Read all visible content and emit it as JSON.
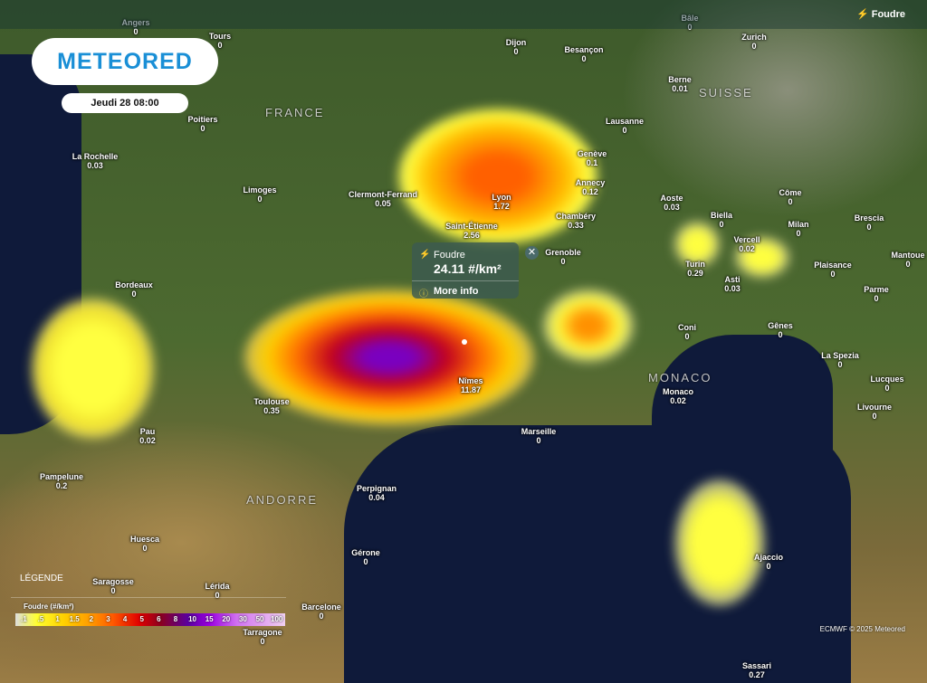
{
  "header": {
    "layer": "Foudre",
    "logo": "METEORED",
    "date": "Jeudi 28 08:00"
  },
  "regions": [
    "FRANCE",
    "SUISSE",
    "ANDORRE",
    "MONACO"
  ],
  "cities": [
    {
      "name": "Angers",
      "value": "0"
    },
    {
      "name": "Tours",
      "value": "0"
    },
    {
      "name": "Dijon",
      "value": "0"
    },
    {
      "name": "Besançon",
      "value": "0"
    },
    {
      "name": "Bâle",
      "value": "0"
    },
    {
      "name": "Zurich",
      "value": "0"
    },
    {
      "name": "Poitiers",
      "value": "0"
    },
    {
      "name": "Berne",
      "value": "0.01"
    },
    {
      "name": "Lausanne",
      "value": "0"
    },
    {
      "name": "La Rochelle",
      "value": "0.03"
    },
    {
      "name": "Genève",
      "value": "0.1"
    },
    {
      "name": "Limoges",
      "value": "0"
    },
    {
      "name": "Clermont-Ferrand",
      "value": "0.05"
    },
    {
      "name": "Lyon",
      "value": "1.72"
    },
    {
      "name": "Annecy",
      "value": "0.12"
    },
    {
      "name": "Côme",
      "value": "0"
    },
    {
      "name": "Aoste",
      "value": "0.03"
    },
    {
      "name": "Chambéry",
      "value": "0.33"
    },
    {
      "name": "Biella",
      "value": "0"
    },
    {
      "name": "Milan",
      "value": "0"
    },
    {
      "name": "Brescia",
      "value": "0"
    },
    {
      "name": "Saint-Étienne",
      "value": "2.56"
    },
    {
      "name": "Grenoble",
      "value": "0"
    },
    {
      "name": "Vercell",
      "value": "0.02"
    },
    {
      "name": "Turin",
      "value": "0.29"
    },
    {
      "name": "Plaisance",
      "value": "0"
    },
    {
      "name": "Mantoue",
      "value": "0"
    },
    {
      "name": "Bordeaux",
      "value": "0"
    },
    {
      "name": "Asti",
      "value": "0.03"
    },
    {
      "name": "Parme",
      "value": "0"
    },
    {
      "name": "Coni",
      "value": "0"
    },
    {
      "name": "Gênes",
      "value": "0"
    },
    {
      "name": "La Spezia",
      "value": "0"
    },
    {
      "name": "Nîmes",
      "value": "11.87"
    },
    {
      "name": "Toulouse",
      "value": "0.35"
    },
    {
      "name": "Monaco",
      "value": "0.02"
    },
    {
      "name": "Lucques",
      "value": "0"
    },
    {
      "name": "Livourne",
      "value": "0"
    },
    {
      "name": "Marseille",
      "value": "0"
    },
    {
      "name": "Pau",
      "value": "0.02"
    },
    {
      "name": "Pampelune",
      "value": "0.2"
    },
    {
      "name": "Perpignan",
      "value": "0.04"
    },
    {
      "name": "Huesca",
      "value": "0"
    },
    {
      "name": "Gérone",
      "value": "0"
    },
    {
      "name": "Saragosse",
      "value": "0"
    },
    {
      "name": "Lérida",
      "value": "0"
    },
    {
      "name": "Ajaccio",
      "value": "0"
    },
    {
      "name": "Barcelone",
      "value": "0"
    },
    {
      "name": "Tarragone",
      "value": "0"
    },
    {
      "name": "Sassari",
      "value": "0.27"
    }
  ],
  "popup": {
    "title": "Foudre",
    "value": "24.11 #/km²",
    "more": "More info"
  },
  "legend": {
    "title": "LÉGENDE",
    "unit": "Foudre (#/km²)",
    "steps": [
      ".1",
      ".5",
      "1",
      "1.5",
      "2",
      "3",
      "4",
      "5",
      "6",
      "8",
      "10",
      "15",
      "20",
      "30",
      "50",
      "100"
    ]
  },
  "credit": "ECMWF © 2025 Meteored"
}
